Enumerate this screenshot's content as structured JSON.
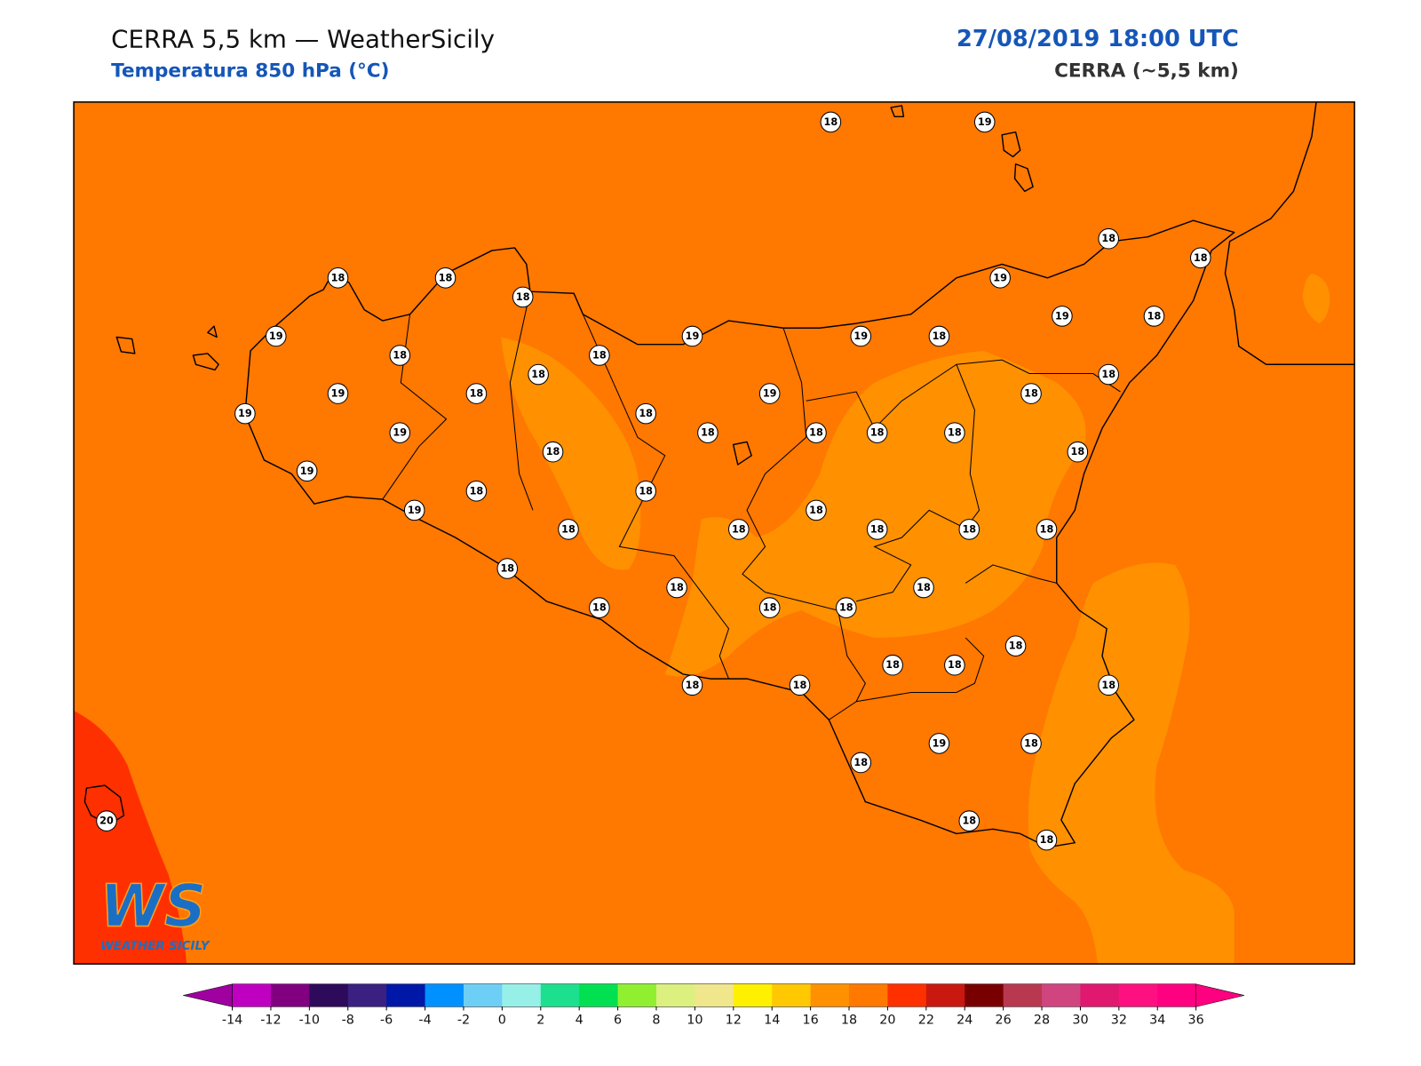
{
  "header": {
    "title": "CERRA 5,5 km — WeatherSicily",
    "subtitle": "Temperatura 850 hPa (°C)",
    "datetime": "27/08/2019 18:00 UTC",
    "model": "CERRA (~5,5 km)"
  },
  "map": {
    "field_colors": {
      "base": "#ff7800",
      "warm": "#ff3000",
      "cool": "#ff9000"
    },
    "station_values": [
      18,
      19,
      18,
      18,
      18,
      18,
      18,
      19,
      19,
      19,
      19,
      18,
      19,
      18,
      18,
      18,
      18,
      18,
      19,
      18,
      19,
      18,
      19,
      18,
      19,
      18,
      18,
      18,
      18,
      18,
      18,
      19,
      18,
      18,
      19,
      18,
      18,
      18,
      18,
      18,
      18,
      18,
      18,
      18,
      18,
      18,
      18,
      18,
      18,
      18,
      18,
      18,
      18,
      19,
      18,
      18,
      20,
      18,
      18
    ]
  },
  "logo": {
    "mark": "WS",
    "text": "WEATHER SICILY"
  },
  "colorbar": {
    "ticks": [
      -14,
      -12,
      -10,
      -8,
      -6,
      -4,
      -2,
      0,
      2,
      4,
      6,
      8,
      10,
      12,
      14,
      16,
      18,
      20,
      22,
      24,
      26,
      28,
      30,
      32,
      34,
      36
    ],
    "colors": [
      "#c000c0",
      "#800080",
      "#2d0a5a",
      "#3a2080",
      "#0018a8",
      "#0090ff",
      "#6ecff6",
      "#96f0e8",
      "#1de08f",
      "#00e050",
      "#90f030",
      "#dcf080",
      "#f0e68c",
      "#fff000",
      "#ffc800",
      "#ff9000",
      "#ff7800",
      "#ff3000",
      "#c81810",
      "#780000",
      "#b83850",
      "#d04480",
      "#e01870",
      "#ff1080",
      "#ff0080"
    ],
    "under_color": "#a000a0",
    "over_color": "#ff0080"
  }
}
